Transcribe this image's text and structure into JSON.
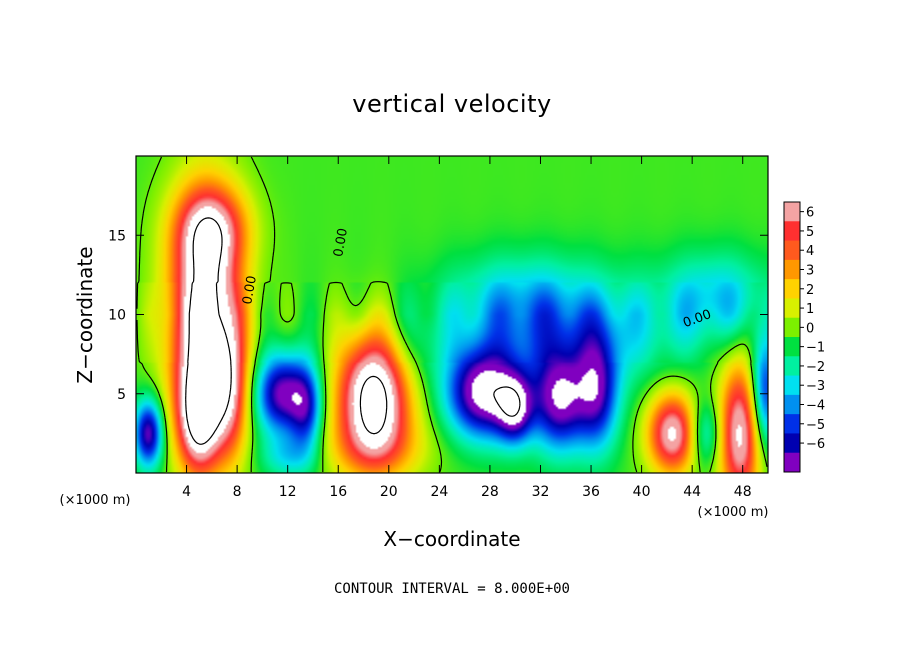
{
  "chart_data": {
    "type": "heatmap",
    "title": "vertical velocity",
    "xlabel": "X−coordinate",
    "ylabel": "Z−coordinate",
    "x_unit": "(×1000 m)",
    "z_unit": "(×1000 m)",
    "xlim": [
      0,
      50
    ],
    "ylim": [
      0,
      20
    ],
    "x_ticks": [
      4,
      8,
      12,
      16,
      20,
      24,
      28,
      32,
      36,
      40,
      44,
      48
    ],
    "y_ticks": [
      5,
      10,
      15
    ],
    "colorbar": {
      "min": -6,
      "max": 6,
      "labels": [
        "6",
        "5",
        "4",
        "3",
        "2",
        "1",
        "0",
        "−1",
        "−2",
        "−3",
        "−4",
        "−5",
        "−6"
      ],
      "colors": [
        "#f4a3a3",
        "#ff3030",
        "#ff5a1e",
        "#ff9800",
        "#ffd200",
        "#d8f000",
        "#7cf000",
        "#00e040",
        "#00f0a0",
        "#00e0f0",
        "#0090f0",
        "#0030e8",
        "#0000b0",
        "#8000c0"
      ]
    },
    "contour_labels": [
      "0.00",
      "0.00",
      "0.00"
    ],
    "footnote": "CONTOUR INTERVAL = 8.000E+00",
    "features": [
      {
        "x": 5.5,
        "z": 10,
        "sx": 2.0,
        "sz": 5.0,
        "w": 9
      },
      {
        "x": 5.0,
        "z": 3.5,
        "sx": 1.2,
        "sz": 2.5,
        "w": 7
      },
      {
        "x": 7.5,
        "z": 5,
        "sx": 1.0,
        "sz": 3.0,
        "w": 4
      },
      {
        "x": 6,
        "z": 15.5,
        "sx": 2.0,
        "sz": 1.8,
        "w": 4
      },
      {
        "x": 1.0,
        "z": 2.5,
        "sx": 0.8,
        "sz": 1.5,
        "w": -6
      },
      {
        "x": 11.5,
        "z": 5,
        "sx": 1.5,
        "sz": 1.8,
        "w": -6
      },
      {
        "x": 13.5,
        "z": 4,
        "sx": 0.9,
        "sz": 2.0,
        "w": -4
      },
      {
        "x": 18.8,
        "z": 4.8,
        "sx": 2.0,
        "sz": 2.8,
        "w": 9
      },
      {
        "x": 19,
        "z": 1.5,
        "sx": 3.0,
        "sz": 1.5,
        "w": 2
      },
      {
        "x": 27.5,
        "z": 5,
        "sx": 2.0,
        "sz": 2.0,
        "w": -7
      },
      {
        "x": 30,
        "z": 4,
        "sx": 1.0,
        "sz": 1.5,
        "w": -5
      },
      {
        "x": 33.5,
        "z": 4.5,
        "sx": 1.5,
        "sz": 2.2,
        "w": -6
      },
      {
        "x": 36.5,
        "z": 5,
        "sx": 1.2,
        "sz": 2.5,
        "w": -5
      },
      {
        "x": 34,
        "z": 9,
        "sx": 6.0,
        "sz": 2.5,
        "w": -3
      },
      {
        "x": 30,
        "z": 11,
        "sx": 4.0,
        "sz": 2.0,
        "w": -1.5
      },
      {
        "x": 42.5,
        "z": 2.5,
        "sx": 1.4,
        "sz": 1.8,
        "w": 7
      },
      {
        "x": 47.8,
        "z": 2.5,
        "sx": 1.2,
        "sz": 3.2,
        "w": 7
      },
      {
        "x": 45,
        "z": 2.5,
        "sx": 1.0,
        "sz": 1.5,
        "w": -3
      },
      {
        "x": 49.7,
        "z": 5,
        "sx": 0.8,
        "sz": 2.5,
        "w": -5
      },
      {
        "x": 46,
        "z": 11,
        "sx": 3.0,
        "sz": 2.0,
        "w": -2.5
      },
      {
        "x": 12,
        "z": 1.0,
        "sx": 1.5,
        "sz": 1.0,
        "w": -2
      },
      {
        "x": 22,
        "z": 8,
        "sx": 1.5,
        "sz": 2.0,
        "w": -1
      }
    ]
  }
}
